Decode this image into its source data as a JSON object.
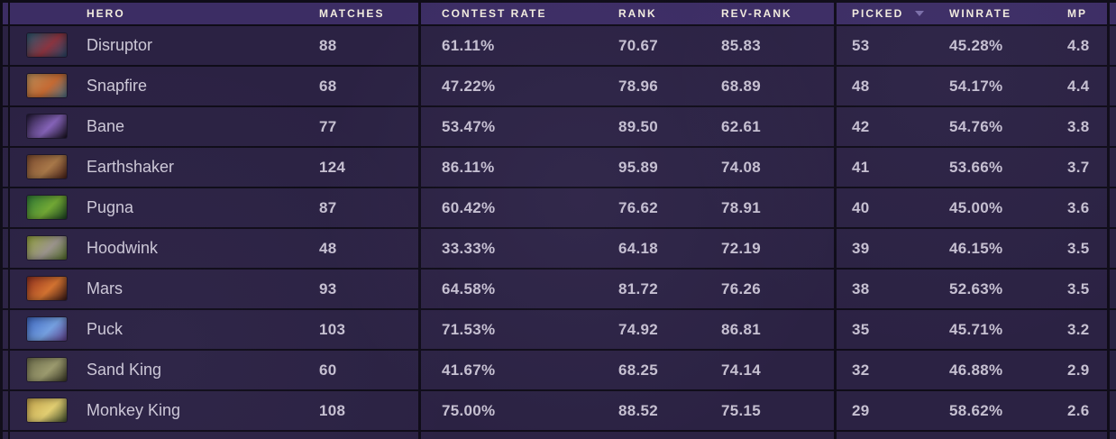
{
  "theme": {
    "header_bg": "#3c2d64",
    "row_bg": "#2b2243",
    "divider": "#0f0c18",
    "header_text": "#f2ecdf",
    "cell_text": "#c6c0d1",
    "name_text": "#cdc8d7",
    "sort_arrow": "#7b6fa8"
  },
  "table": {
    "headers": {
      "hero": "HERO",
      "matches": "MATCHES",
      "contest_rate": "CONTEST RATE",
      "rank": "RANK",
      "rev_rank": "REV-RANK",
      "picked": "PICKED",
      "winrate": "WINRATE",
      "mp": "MP"
    },
    "sort": {
      "column": "PICKED",
      "direction": "desc"
    },
    "rows": [
      {
        "hero": "Disruptor",
        "matches": "88",
        "contest_rate": "61.11%",
        "rank": "70.67",
        "rev_rank": "85.83",
        "picked": "53",
        "winrate": "45.28%",
        "mp": "4.8",
        "icon": {
          "name": "disruptor-portrait-icon",
          "colors": [
            "#2a5a72",
            "#8a3440",
            "#27486b"
          ]
        }
      },
      {
        "hero": "Snapfire",
        "matches": "68",
        "contest_rate": "47.22%",
        "rank": "78.96",
        "rev_rank": "68.89",
        "picked": "48",
        "winrate": "54.17%",
        "mp": "4.4",
        "icon": {
          "name": "snapfire-portrait-icon",
          "colors": [
            "#b98e5a",
            "#c56a33",
            "#4c7086"
          ]
        }
      },
      {
        "hero": "Bane",
        "matches": "77",
        "contest_rate": "53.47%",
        "rank": "89.50",
        "rev_rank": "62.61",
        "picked": "42",
        "winrate": "54.76%",
        "mp": "3.8",
        "icon": {
          "name": "bane-portrait-icon",
          "colors": [
            "#241a38",
            "#8563b8",
            "#17101f"
          ]
        }
      },
      {
        "hero": "Earthshaker",
        "matches": "124",
        "contest_rate": "86.11%",
        "rank": "95.89",
        "rev_rank": "74.08",
        "picked": "41",
        "winrate": "53.66%",
        "mp": "3.7",
        "icon": {
          "name": "earthshaker-portrait-icon",
          "colors": [
            "#7c4a2e",
            "#a87848",
            "#461e16"
          ]
        }
      },
      {
        "hero": "Pugna",
        "matches": "87",
        "contest_rate": "60.42%",
        "rank": "76.62",
        "rev_rank": "78.91",
        "picked": "40",
        "winrate": "45.00%",
        "mp": "3.6",
        "icon": {
          "name": "pugna-portrait-icon",
          "colors": [
            "#2e7a34",
            "#71a833",
            "#173f1f"
          ]
        }
      },
      {
        "hero": "Hoodwink",
        "matches": "48",
        "contest_rate": "33.33%",
        "rank": "64.18",
        "rev_rank": "72.19",
        "picked": "39",
        "winrate": "46.15%",
        "mp": "3.5",
        "icon": {
          "name": "hoodwink-portrait-icon",
          "colors": [
            "#93a33b",
            "#9b948b",
            "#4f6a24"
          ]
        }
      },
      {
        "hero": "Mars",
        "matches": "93",
        "contest_rate": "64.58%",
        "rank": "81.72",
        "rev_rank": "76.26",
        "picked": "38",
        "winrate": "52.63%",
        "mp": "3.5",
        "icon": {
          "name": "mars-portrait-icon",
          "colors": [
            "#93301c",
            "#d4722e",
            "#331410"
          ]
        }
      },
      {
        "hero": "Puck",
        "matches": "103",
        "contest_rate": "71.53%",
        "rank": "74.92",
        "rev_rank": "86.81",
        "picked": "35",
        "winrate": "45.71%",
        "mp": "3.2",
        "icon": {
          "name": "puck-portrait-icon",
          "colors": [
            "#3c66c0",
            "#74a0e0",
            "#5b3b87"
          ]
        }
      },
      {
        "hero": "Sand King",
        "matches": "60",
        "contest_rate": "41.67%",
        "rank": "68.25",
        "rev_rank": "74.14",
        "picked": "32",
        "winrate": "46.88%",
        "mp": "2.9",
        "icon": {
          "name": "sand-king-portrait-icon",
          "colors": [
            "#6d6d49",
            "#9c9b6d",
            "#34331f"
          ]
        }
      },
      {
        "hero": "Monkey King",
        "matches": "108",
        "contest_rate": "75.00%",
        "rank": "88.52",
        "rev_rank": "75.15",
        "picked": "29",
        "winrate": "58.62%",
        "mp": "2.6",
        "icon": {
          "name": "monkey-king-portrait-icon",
          "colors": [
            "#c3a349",
            "#e3cf70",
            "#3c4a26"
          ]
        }
      }
    ]
  }
}
